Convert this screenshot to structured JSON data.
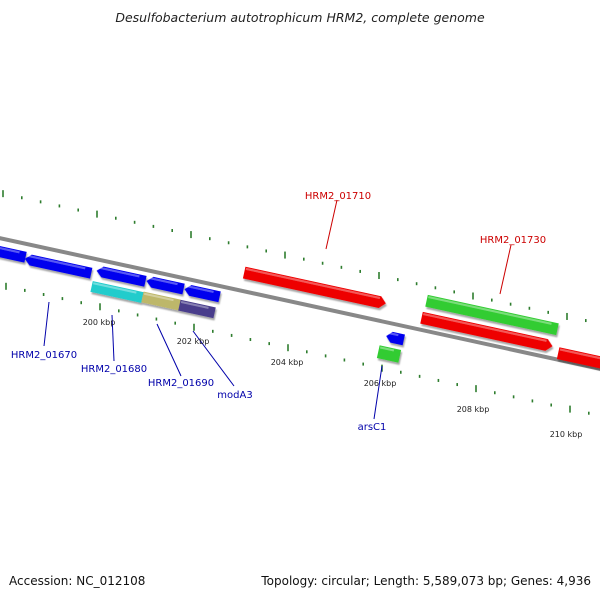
{
  "title": "Desulfobacterium autotrophicum HRM2, complete genome",
  "footer": {
    "accession": "Accession: NC_012108",
    "topology": "Topology: circular; Length: 5,589,073 bp; Genes: 4,936"
  },
  "colors": {
    "backbone": "#888888",
    "tick": "#2e7d2e",
    "forward_label": "#cc0000",
    "reverse_label": "#0000aa",
    "gene_blue": "#0000ee",
    "gene_red": "#ee0000",
    "gene_green": "#33cc33",
    "gene_cyan": "#22cccc",
    "gene_khaki": "#bdb76b",
    "gene_darkslate": "#483d8b"
  },
  "scale_labels": [
    {
      "text": "200 kbp",
      "kbp": 200
    },
    {
      "text": "202 kbp",
      "kbp": 202
    },
    {
      "text": "204 kbp",
      "kbp": 204
    },
    {
      "text": "206 kbp",
      "kbp": 206
    },
    {
      "text": "208 kbp",
      "kbp": 208
    },
    {
      "text": "210 kbp",
      "kbp": 210
    }
  ],
  "gene_labels": [
    {
      "text": "HRM2_01670",
      "strand": "reverse"
    },
    {
      "text": "HRM2_01680",
      "strand": "reverse"
    },
    {
      "text": "HRM2_01690",
      "strand": "reverse"
    },
    {
      "text": "modA3",
      "strand": "reverse"
    },
    {
      "text": "HRM2_01710",
      "strand": "forward"
    },
    {
      "text": "HRM2_01730",
      "strand": "forward"
    },
    {
      "text": "arsC1",
      "strand": "reverse"
    }
  ]
}
